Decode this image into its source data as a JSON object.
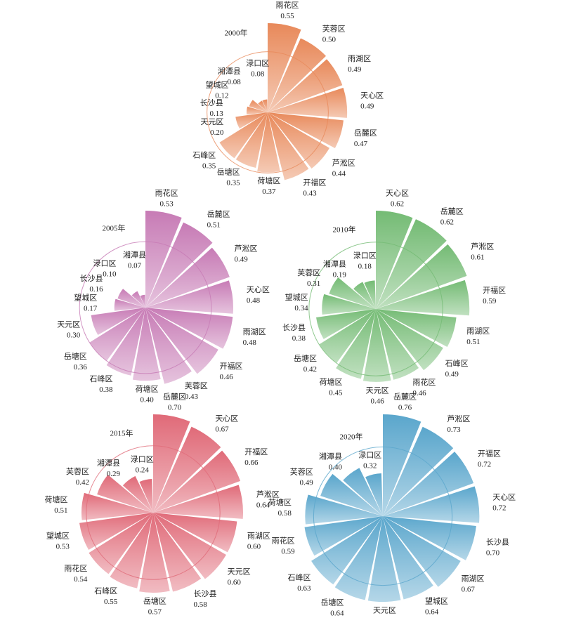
{
  "chart_data": [
    {
      "type": "rose",
      "title": "2000年",
      "color": "#e8895a",
      "categories": [
        "雨花区",
        "芙蓉区",
        "雨湖区",
        "天心区",
        "岳麓区",
        "芦淞区",
        "开福区",
        "荷塘区",
        "岳塘区",
        "石峰区",
        "天元区",
        "长沙县",
        "望城区",
        "湘潭县",
        "渌口区"
      ],
      "values": [
        0.55,
        0.5,
        0.49,
        0.49,
        0.47,
        0.44,
        0.43,
        0.37,
        0.35,
        0.35,
        0.2,
        0.13,
        0.12,
        0.08,
        0.08
      ],
      "value_labels": [
        "0.55",
        "0.50",
        "0.49",
        "0.49",
        "0.47",
        "0.44",
        "0.43",
        "0.37",
        "0.35",
        "0.35",
        "0.20",
        "0.13",
        "0.12",
        "0.08",
        "0.08"
      ]
    },
    {
      "type": "rose",
      "title": "2005年",
      "color": "#c77bb5",
      "categories": [
        "雨花区",
        "岳麓区",
        "芦淞区",
        "天心区",
        "雨湖区",
        "开福区",
        "芙蓉区",
        "荷塘区",
        "石峰区",
        "岳塘区",
        "天元区",
        "望城区",
        "长沙县",
        "渌口区",
        "湘潭县"
      ],
      "values": [
        0.53,
        0.51,
        0.49,
        0.48,
        0.48,
        0.46,
        0.43,
        0.4,
        0.38,
        0.36,
        0.3,
        0.17,
        0.16,
        0.1,
        0.07
      ],
      "value_labels": [
        "0.53",
        "0.51",
        "0.49",
        "0.48",
        "0.48",
        "0.46",
        "0.43",
        "0.40",
        "0.38",
        "0.36",
        "0.30",
        "0.17",
        "0.16",
        "0.10",
        "0.07"
      ]
    },
    {
      "type": "rose",
      "title": "2010年",
      "color": "#74bb74",
      "categories": [
        "天心区",
        "岳麓区",
        "芦淞区",
        "开福区",
        "雨湖区",
        "石峰区",
        "雨花区",
        "天元区",
        "荷塘区",
        "岳塘区",
        "长沙县",
        "望城区",
        "芙蓉区",
        "湘潭县",
        "渌口区"
      ],
      "values": [
        0.62,
        0.62,
        0.61,
        0.59,
        0.51,
        0.49,
        0.46,
        0.46,
        0.45,
        0.42,
        0.38,
        0.34,
        0.31,
        0.19,
        0.18
      ],
      "value_labels": [
        "0.62",
        "0.62",
        "0.61",
        "0.59",
        "0.51",
        "0.49",
        "0.46",
        "0.46",
        "0.45",
        "0.42",
        "0.38",
        "0.34",
        "0.31",
        "0.19",
        "0.18"
      ]
    },
    {
      "type": "rose",
      "title": "2015年",
      "color": "#e06a78",
      "categories": [
        "岳麓区",
        "天心区",
        "开福区",
        "芦淞区",
        "雨湖区",
        "天元区",
        "长沙县",
        "岳塘区",
        "石峰区",
        "雨花区",
        "望城区",
        "荷塘区",
        "芙蓉区",
        "湘潭县",
        "渌口区"
      ],
      "values": [
        0.7,
        0.67,
        0.66,
        0.64,
        0.6,
        0.6,
        0.58,
        0.57,
        0.55,
        0.54,
        0.53,
        0.51,
        0.42,
        0.29,
        0.24
      ],
      "value_labels": [
        "0.70",
        "0.67",
        "0.66",
        "0.64",
        "0.60",
        "0.60",
        "0.58",
        "0.57",
        "0.55",
        "0.54",
        "0.53",
        "0.51",
        "0.42",
        "0.29",
        "0.24"
      ]
    },
    {
      "type": "rose",
      "title": "2020年",
      "color": "#5aa6cc",
      "categories": [
        "岳麓区",
        "芦淞区",
        "开福区",
        "天心区",
        "长沙县",
        "雨湖区",
        "望城区",
        "天元区",
        "岳塘区",
        "石峰区",
        "雨花区",
        "荷塘区",
        "芙蓉区",
        "湘潭县",
        "渌口区"
      ],
      "values": [
        0.76,
        0.73,
        0.72,
        0.72,
        0.7,
        0.67,
        0.64,
        0.64,
        0.64,
        0.63,
        0.59,
        0.58,
        0.49,
        0.4,
        0.32
      ],
      "value_labels": [
        "0.76",
        "0.73",
        "0.72",
        "0.72",
        "0.70",
        "0.67",
        "0.64",
        "0.64",
        "0.64",
        "0.63",
        "0.59",
        "0.58",
        "0.49",
        "0.40",
        "0.32"
      ]
    }
  ]
}
